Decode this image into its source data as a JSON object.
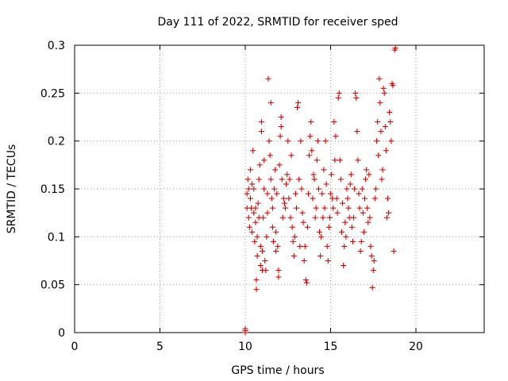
{
  "chart_data": {
    "type": "scatter",
    "title": "Day 111 of 2022, SRMTID for receiver sped",
    "xlabel": "GPS time / hours",
    "ylabel": "SRMTID / TECUs",
    "xlim": [
      0,
      24
    ],
    "ylim": [
      0,
      0.3
    ],
    "xticks": [
      0,
      5,
      10,
      15,
      20
    ],
    "yticks": [
      0,
      0.05,
      0.1,
      0.15,
      0.2,
      0.25,
      0.3
    ],
    "xtick_labels": [
      "0",
      "5",
      "10",
      "15",
      "20"
    ],
    "ytick_labels": [
      "0",
      "0.05",
      "0.1",
      "0.15",
      "0.2",
      "0.25",
      "0.3"
    ],
    "grid": true,
    "series": [
      {
        "name": "SRMTID",
        "marker": "+",
        "color": "#e00000",
        "points": [
          [
            10.0,
            0.0
          ],
          [
            10.0,
            0.002
          ],
          [
            10.0,
            0.004
          ],
          [
            10.1,
            0.13
          ],
          [
            10.1,
            0.145
          ],
          [
            10.15,
            0.16
          ],
          [
            10.2,
            0.12
          ],
          [
            10.2,
            0.15
          ],
          [
            10.25,
            0.11
          ],
          [
            10.3,
            0.17
          ],
          [
            10.3,
            0.14
          ],
          [
            10.35,
            0.13
          ],
          [
            10.4,
            0.155
          ],
          [
            10.4,
            0.105
          ],
          [
            10.45,
            0.19
          ],
          [
            10.5,
            0.125
          ],
          [
            10.5,
            0.15
          ],
          [
            10.55,
            0.095
          ],
          [
            10.6,
            0.115
          ],
          [
            10.6,
            0.13
          ],
          [
            10.65,
            0.055
          ],
          [
            10.65,
            0.045
          ],
          [
            10.7,
            0.08
          ],
          [
            10.7,
            0.1
          ],
          [
            10.75,
            0.135
          ],
          [
            10.8,
            0.12
          ],
          [
            10.8,
            0.16
          ],
          [
            10.85,
            0.175
          ],
          [
            10.9,
            0.07
          ],
          [
            10.9,
            0.09
          ],
          [
            10.95,
            0.21
          ],
          [
            10.95,
            0.22
          ],
          [
            11.0,
            0.065
          ],
          [
            11.0,
            0.085
          ],
          [
            11.05,
            0.12
          ],
          [
            11.1,
            0.15
          ],
          [
            11.1,
            0.18
          ],
          [
            11.15,
            0.075
          ],
          [
            11.2,
            0.065
          ],
          [
            11.25,
            0.1
          ],
          [
            11.3,
            0.125
          ],
          [
            11.3,
            0.145
          ],
          [
            11.35,
            0.265
          ],
          [
            11.4,
            0.2
          ],
          [
            11.45,
            0.185
          ],
          [
            11.5,
            0.24
          ],
          [
            11.5,
            0.16
          ],
          [
            11.55,
            0.14
          ],
          [
            11.6,
            0.11
          ],
          [
            11.6,
            0.13
          ],
          [
            11.65,
            0.095
          ],
          [
            11.7,
            0.15
          ],
          [
            11.75,
            0.17
          ],
          [
            11.8,
            0.105
          ],
          [
            11.8,
            0.085
          ],
          [
            11.85,
            0.145
          ],
          [
            11.9,
            0.09
          ],
          [
            11.95,
            0.065
          ],
          [
            11.95,
            0.058
          ],
          [
            12.0,
            0.175
          ],
          [
            12.05,
            0.205
          ],
          [
            12.1,
            0.215
          ],
          [
            12.1,
            0.225
          ],
          [
            12.15,
            0.16
          ],
          [
            12.2,
            0.12
          ],
          [
            12.25,
            0.14
          ],
          [
            12.3,
            0.135
          ],
          [
            12.35,
            0.13
          ],
          [
            12.4,
            0.155
          ],
          [
            12.45,
            0.165
          ],
          [
            12.5,
            0.2
          ],
          [
            12.55,
            0.14
          ],
          [
            12.6,
            0.16
          ],
          [
            12.65,
            0.12
          ],
          [
            12.7,
            0.185
          ],
          [
            12.75,
            0.11
          ],
          [
            12.8,
            0.095
          ],
          [
            12.85,
            0.08
          ],
          [
            12.9,
            0.1
          ],
          [
            12.95,
            0.145
          ],
          [
            13.0,
            0.13
          ],
          [
            13.05,
            0.235
          ],
          [
            13.1,
            0.24
          ],
          [
            13.15,
            0.16
          ],
          [
            13.2,
            0.09
          ],
          [
            13.25,
            0.2
          ],
          [
            13.3,
            0.15
          ],
          [
            13.35,
            0.125
          ],
          [
            13.4,
            0.115
          ],
          [
            13.45,
            0.075
          ],
          [
            13.5,
            0.09
          ],
          [
            13.55,
            0.055
          ],
          [
            13.6,
            0.052
          ],
          [
            13.65,
            0.11
          ],
          [
            13.7,
            0.145
          ],
          [
            13.75,
            0.185
          ],
          [
            13.8,
            0.205
          ],
          [
            13.85,
            0.22
          ],
          [
            13.9,
            0.19
          ],
          [
            13.95,
            0.14
          ],
          [
            14.0,
            0.165
          ],
          [
            14.05,
            0.16
          ],
          [
            14.1,
            0.12
          ],
          [
            14.15,
            0.13
          ],
          [
            14.2,
            0.18
          ],
          [
            14.25,
            0.2
          ],
          [
            14.3,
            0.15
          ],
          [
            14.35,
            0.105
          ],
          [
            14.4,
            0.08
          ],
          [
            14.45,
            0.1
          ],
          [
            14.5,
            0.145
          ],
          [
            14.55,
            0.12
          ],
          [
            14.6,
            0.17
          ],
          [
            14.65,
            0.13
          ],
          [
            14.7,
            0.2
          ],
          [
            14.75,
            0.155
          ],
          [
            14.8,
            0.09
          ],
          [
            14.85,
            0.075
          ],
          [
            14.9,
            0.11
          ],
          [
            14.95,
            0.12
          ],
          [
            15.0,
            0.145
          ],
          [
            15.05,
            0.165
          ],
          [
            15.1,
            0.14
          ],
          [
            15.15,
            0.13
          ],
          [
            15.2,
            0.22
          ],
          [
            15.25,
            0.18
          ],
          [
            15.3,
            0.205
          ],
          [
            15.35,
            0.14
          ],
          [
            15.4,
            0.125
          ],
          [
            15.45,
            0.245
          ],
          [
            15.5,
            0.25
          ],
          [
            15.55,
            0.18
          ],
          [
            15.6,
            0.16
          ],
          [
            15.65,
            0.105
          ],
          [
            15.7,
            0.135
          ],
          [
            15.75,
            0.07
          ],
          [
            15.8,
            0.09
          ],
          [
            15.85,
            0.115
          ],
          [
            15.9,
            0.1
          ],
          [
            15.95,
            0.15
          ],
          [
            16.0,
            0.14
          ],
          [
            16.05,
            0.13
          ],
          [
            16.1,
            0.12
          ],
          [
            16.15,
            0.155
          ],
          [
            16.2,
            0.165
          ],
          [
            16.25,
            0.11
          ],
          [
            16.3,
            0.095
          ],
          [
            16.35,
            0.12
          ],
          [
            16.4,
            0.15
          ],
          [
            16.45,
            0.25
          ],
          [
            16.5,
            0.245
          ],
          [
            16.55,
            0.21
          ],
          [
            16.6,
            0.18
          ],
          [
            16.65,
            0.145
          ],
          [
            16.7,
            0.13
          ],
          [
            16.75,
            0.085
          ],
          [
            16.8,
            0.095
          ],
          [
            16.85,
            0.15
          ],
          [
            16.9,
            0.125
          ],
          [
            16.95,
            0.105
          ],
          [
            17.0,
            0.14
          ],
          [
            17.05,
            0.16
          ],
          [
            17.1,
            0.17
          ],
          [
            17.15,
            0.13
          ],
          [
            17.2,
            0.115
          ],
          [
            17.25,
            0.165
          ],
          [
            17.3,
            0.12
          ],
          [
            17.35,
            0.09
          ],
          [
            17.4,
            0.08
          ],
          [
            17.45,
            0.047
          ],
          [
            17.5,
            0.065
          ],
          [
            17.55,
            0.075
          ],
          [
            17.6,
            0.14
          ],
          [
            17.65,
            0.15
          ],
          [
            17.7,
            0.2
          ],
          [
            17.75,
            0.22
          ],
          [
            17.8,
            0.185
          ],
          [
            17.85,
            0.265
          ],
          [
            17.9,
            0.24
          ],
          [
            17.95,
            0.21
          ],
          [
            18.0,
            0.16
          ],
          [
            18.05,
            0.17
          ],
          [
            18.1,
            0.255
          ],
          [
            18.15,
            0.25
          ],
          [
            18.2,
            0.215
          ],
          [
            18.25,
            0.19
          ],
          [
            18.3,
            0.12
          ],
          [
            18.35,
            0.14
          ],
          [
            18.4,
            0.125
          ],
          [
            18.45,
            0.23
          ],
          [
            18.5,
            0.22
          ],
          [
            18.55,
            0.2
          ],
          [
            18.6,
            0.26
          ],
          [
            18.65,
            0.258
          ],
          [
            18.7,
            0.085
          ],
          [
            18.75,
            0.295
          ],
          [
            18.8,
            0.297
          ]
        ]
      }
    ]
  }
}
